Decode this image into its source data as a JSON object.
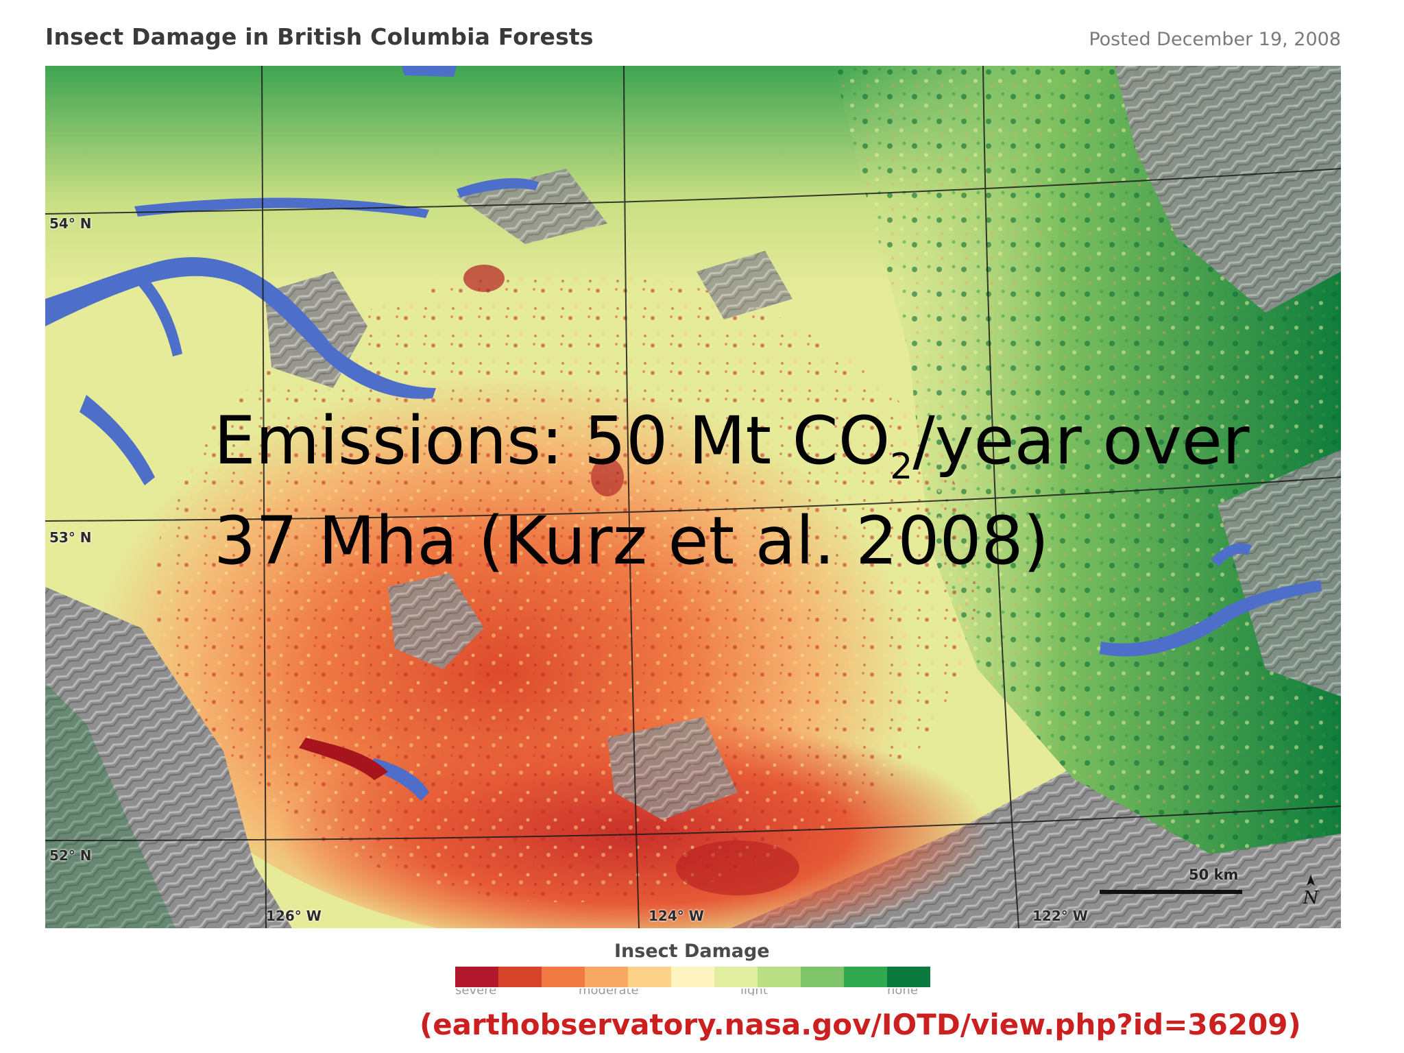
{
  "header": {
    "title": "Insect Damage in British Columbia Forests",
    "posted": "Posted December 19, 2008"
  },
  "map": {
    "latitude_labels": [
      "54° N",
      "53° N",
      "52° N"
    ],
    "longitude_labels": [
      "126° W",
      "124° W",
      "122° W"
    ],
    "scale_label": "50 km",
    "north_symbol": "N",
    "icons": [
      "north-arrow-icon"
    ],
    "colors": {
      "water": "#4d6fc9",
      "terrain_gray": "#8e8e8e",
      "severe_damage": "#c0392b",
      "moderate_damage": "#f08a4b",
      "light_damage": "#eef2a0",
      "healthy_forest": "#0e7a3a"
    }
  },
  "overlay": {
    "line1_prefix": "Emissions: 50 Mt CO",
    "line1_subscript": "2",
    "line1_suffix": "/year over",
    "line2": "37 Mha (Kurz et al. 2008)"
  },
  "legend": {
    "title": "Insect Damage",
    "colors": [
      "#b2182b",
      "#d6452a",
      "#f07a44",
      "#f9a864",
      "#fcd288",
      "#fdf4c0",
      "#e2efa0",
      "#b9de83",
      "#7fc36a",
      "#2fa84f",
      "#0b7a3e"
    ],
    "tick_labels": [
      "severe",
      "moderate",
      "light",
      "none"
    ]
  },
  "source": {
    "text": "(earthobservatory.nasa.gov/IOTD/view.php?id=36209)"
  }
}
